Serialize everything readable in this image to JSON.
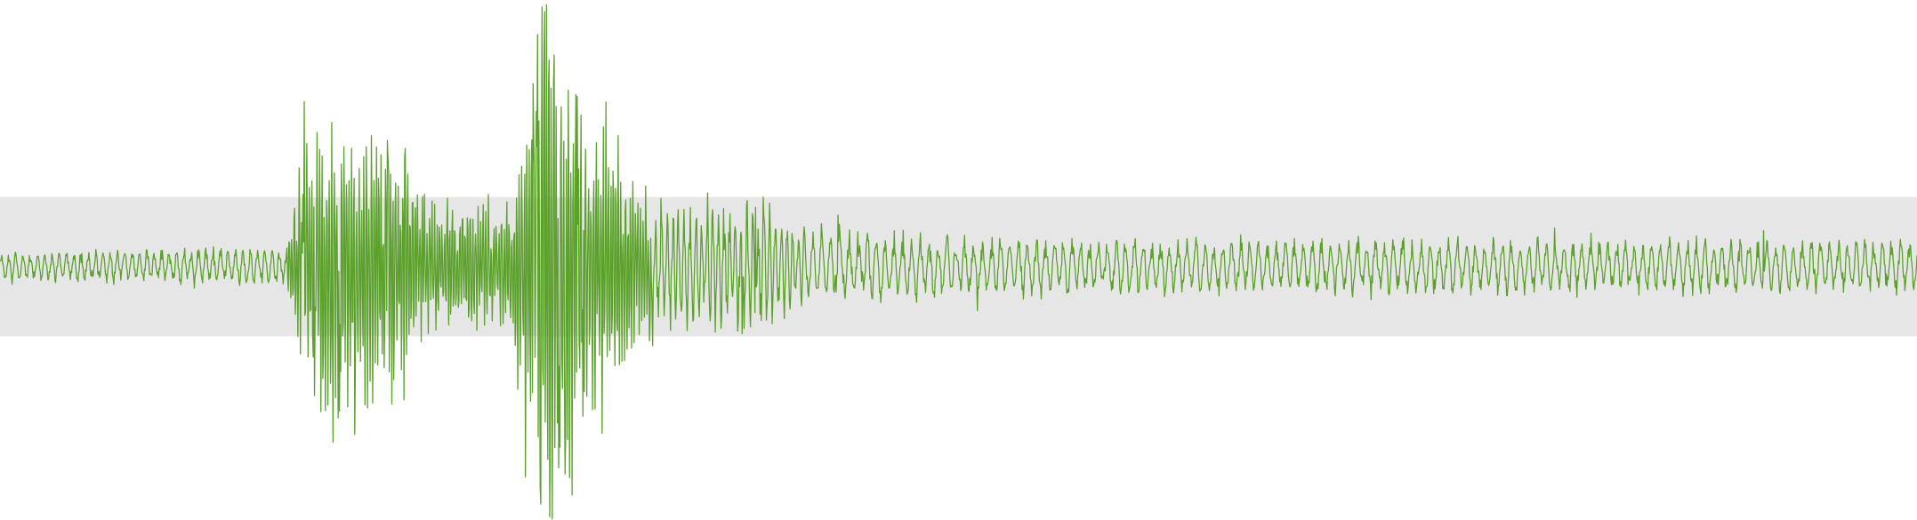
{
  "chart_data": {
    "type": "line",
    "title": "",
    "xlabel": "",
    "ylabel": "",
    "grid": false,
    "legend": "none",
    "ylim": [
      -1.0,
      1.0
    ],
    "band": [
      -0.27,
      0.27
    ],
    "colors": {
      "trace": "#5ba12b",
      "band": "#e6e6e6",
      "background": "#ffffff"
    },
    "envelope_keypoints": [
      [
        0.0,
        0.05
      ],
      [
        0.15,
        0.07
      ],
      [
        0.154,
        0.28
      ],
      [
        0.158,
        0.52
      ],
      [
        0.175,
        0.55
      ],
      [
        0.195,
        0.5
      ],
      [
        0.21,
        0.48
      ],
      [
        0.222,
        0.25
      ],
      [
        0.262,
        0.22
      ],
      [
        0.27,
        0.4
      ],
      [
        0.278,
        0.85
      ],
      [
        0.283,
        0.98
      ],
      [
        0.29,
        0.85
      ],
      [
        0.305,
        0.62
      ],
      [
        0.322,
        0.45
      ],
      [
        0.335,
        0.3
      ],
      [
        0.35,
        0.22
      ],
      [
        0.36,
        0.2
      ],
      [
        0.37,
        0.22
      ],
      [
        0.38,
        0.25
      ],
      [
        0.395,
        0.27
      ],
      [
        0.405,
        0.16
      ],
      [
        0.44,
        0.13
      ],
      [
        0.5,
        0.1
      ],
      [
        1.0,
        0.09
      ]
    ],
    "spikes": [
      {
        "x": 0.284,
        "y": 0.99
      },
      {
        "x": 0.2868,
        "y": -0.97
      },
      {
        "x": 0.2805,
        "y": 0.9
      },
      {
        "x": 0.282,
        "y": -0.92
      },
      {
        "x": 0.289,
        "y": 0.82
      },
      {
        "x": 0.2915,
        "y": -0.78
      },
      {
        "x": 0.301,
        "y": 0.66
      },
      {
        "x": 0.304,
        "y": -0.58
      },
      {
        "x": 0.278,
        "y": 0.71
      },
      {
        "x": 0.295,
        "y": -0.64
      },
      {
        "x": 0.1655,
        "y": 0.52
      },
      {
        "x": 0.185,
        "y": -0.65
      },
      {
        "x": 0.164,
        "y": -0.5
      },
      {
        "x": 0.202,
        "y": 0.49
      },
      {
        "x": 0.177,
        "y": -0.56
      },
      {
        "x": 0.2095,
        "y": -0.4
      },
      {
        "x": 0.211,
        "y": 0.42
      },
      {
        "x": 0.158,
        "y": 0.28
      },
      {
        "x": 0.33,
        "y": 0.33
      },
      {
        "x": 0.327,
        "y": -0.32
      },
      {
        "x": 0.387,
        "y": -0.26
      },
      {
        "x": 0.398,
        "y": 0.27
      },
      {
        "x": 0.388,
        "y": -0.24
      },
      {
        "x": 0.394,
        "y": 0.23
      },
      {
        "x": 0.437,
        "y": 0.2
      },
      {
        "x": 0.51,
        "y": -0.17
      },
      {
        "x": 0.811,
        "y": 0.15
      },
      {
        "x": 0.92,
        "y": 0.14
      }
    ],
    "sample_count": 3000,
    "baseline": 0.0
  }
}
